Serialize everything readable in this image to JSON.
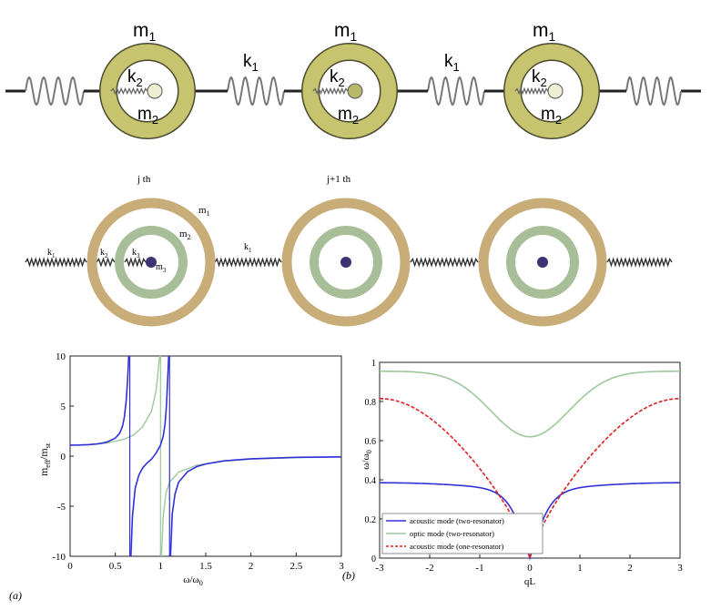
{
  "top_row": {
    "cells": [
      {
        "outer_mass": "m",
        "outer_sub": "1",
        "inner_mass": "m",
        "inner_sub": "2",
        "inner_spring": "k",
        "inner_spring_sub": "2"
      },
      {
        "outer_mass": "m",
        "outer_sub": "1",
        "inner_mass": "m",
        "inner_sub": "2",
        "inner_spring": "k",
        "inner_spring_sub": "2"
      },
      {
        "outer_mass": "m",
        "outer_sub": "1",
        "inner_mass": "m",
        "inner_sub": "2",
        "inner_spring": "k",
        "inner_spring_sub": "2"
      }
    ],
    "coupling_springs": [
      {
        "label": "k",
        "sub": "1"
      },
      {
        "label": "k",
        "sub": "1"
      }
    ],
    "colors": {
      "ring": "#c6c46e",
      "ring_edge": "#4a4a30",
      "mass_light": "#eeeed2",
      "mass_mid": "#b8b86a",
      "spring": "#777777",
      "rod": "#222222"
    }
  },
  "middle_row": {
    "cell_labels": [
      "j th",
      "j+1 th"
    ],
    "outer_mass": {
      "label": "m",
      "sub": "1"
    },
    "middle_mass": {
      "label": "m",
      "sub": "2"
    },
    "inner_mass": {
      "label": "m",
      "sub": "3"
    },
    "spring_labels": [
      {
        "label": "k",
        "sub": "1"
      },
      {
        "label": "k",
        "sub": "2"
      },
      {
        "label": "k",
        "sub": "3"
      },
      {
        "label": "k",
        "sub": "1"
      }
    ],
    "colors": {
      "outer_ring": "#c9ad78",
      "inner_ring": "#a8be98",
      "core": "#3c3470",
      "spring": "#333333"
    }
  },
  "chart_data": [
    {
      "type": "line",
      "panel_label": "(a)",
      "xlabel": "ω/ω",
      "xlabel_sub": "0",
      "ylabel": "m",
      "ylabel_parts": [
        "eff",
        "/m",
        "st"
      ],
      "xlim": [
        0,
        3
      ],
      "ylim": [
        -10,
        10
      ],
      "xticks": [
        "0",
        "0.5",
        "1",
        "1.5",
        "2",
        "2.5",
        "3"
      ],
      "yticks": [
        "10",
        "5",
        "0",
        "-5",
        "-10"
      ],
      "xtick_values": [
        0,
        0.5,
        1,
        1.5,
        2,
        2.5,
        3
      ],
      "ytick_values": [
        10,
        5,
        0,
        -5,
        -10
      ],
      "grid": false,
      "series": [
        {
          "color": "#3030d8",
          "segments": [
            [
              [
                0,
                1.1
              ],
              [
                0.1,
                1.11
              ],
              [
                0.2,
                1.15
              ],
              [
                0.3,
                1.22
              ],
              [
                0.4,
                1.38
              ],
              [
                0.5,
                1.8
              ],
              [
                0.55,
                2.3
              ],
              [
                0.58,
                3.0
              ],
              [
                0.6,
                3.9
              ],
              [
                0.62,
                5.5
              ],
              [
                0.635,
                7.5
              ],
              [
                0.648,
                10
              ]
            ],
            [
              [
                0.672,
                -10
              ],
              [
                0.69,
                -6.0
              ],
              [
                0.72,
                -3.2
              ],
              [
                0.76,
                -1.9
              ],
              [
                0.8,
                -1.2
              ],
              [
                0.85,
                -0.7
              ],
              [
                0.9,
                -0.3
              ],
              [
                0.95,
                0.3
              ],
              [
                1.0,
                1.1
              ],
              [
                1.03,
                2.0
              ],
              [
                1.05,
                3.2
              ],
              [
                1.065,
                5.0
              ],
              [
                1.078,
                7.5
              ],
              [
                1.09,
                10
              ]
            ],
            [
              [
                1.11,
                -10
              ],
              [
                1.13,
                -5.8
              ],
              [
                1.16,
                -3.8
              ],
              [
                1.2,
                -2.6
              ],
              [
                1.3,
                -1.55
              ],
              [
                1.4,
                -1.05
              ],
              [
                1.5,
                -0.78
              ],
              [
                1.7,
                -0.47
              ],
              [
                2.0,
                -0.26
              ],
              [
                2.5,
                -0.12
              ],
              [
                3.0,
                -0.07
              ]
            ]
          ],
          "vertical_lines": [
            0.66,
            1.1
          ]
        },
        {
          "color": "#9cc89c",
          "segments": [
            [
              [
                0,
                1.1
              ],
              [
                0.2,
                1.15
              ],
              [
                0.4,
                1.3
              ],
              [
                0.6,
                1.7
              ],
              [
                0.7,
                2.1
              ],
              [
                0.8,
                2.9
              ],
              [
                0.9,
                4.5
              ],
              [
                0.95,
                6.5
              ],
              [
                0.98,
                9.0
              ],
              [
                0.99,
                10
              ]
            ],
            [
              [
                1.01,
                -10
              ],
              [
                1.03,
                -6.0
              ],
              [
                1.06,
                -3.7
              ],
              [
                1.1,
                -2.6
              ],
              [
                1.2,
                -1.6
              ],
              [
                1.4,
                -0.9
              ],
              [
                1.7,
                -0.5
              ],
              [
                2.0,
                -0.3
              ],
              [
                2.5,
                -0.15
              ],
              [
                3.0,
                -0.08
              ]
            ]
          ],
          "vertical_lines": [
            1.0
          ]
        }
      ]
    },
    {
      "type": "line",
      "panel_label": "(b)",
      "xlabel": "qL",
      "ylabel": "ω/ω",
      "ylabel_sub": "0",
      "xlim": [
        -3,
        3
      ],
      "ylim": [
        0,
        1
      ],
      "xticks": [
        "-3",
        "-2",
        "-1",
        "0",
        "1",
        "2",
        "3"
      ],
      "yticks": [
        "1",
        "0.8",
        "0.6",
        "0.4",
        "0.2",
        "0"
      ],
      "xtick_values": [
        -3,
        -2,
        -1,
        0,
        1,
        2,
        3
      ],
      "ytick_values": [
        1,
        0.8,
        0.6,
        0.4,
        0.2,
        0
      ],
      "grid": false,
      "legend_position": "bottom-left",
      "series": [
        {
          "name": "acoustic mode (two-resonator)",
          "color": "#3030d8",
          "dash": false,
          "curve": "acoustic",
          "max": 0.385
        },
        {
          "name": "optic mode (two-resonator)",
          "color": "#9cc89c",
          "dash": false,
          "curve": "optic",
          "base": 0.62,
          "max": 0.955
        },
        {
          "name": "acoustic mode (one-resonator)",
          "color": "#e02020",
          "dash": true,
          "curve": "acoustic",
          "max": 0.815
        }
      ]
    }
  ]
}
